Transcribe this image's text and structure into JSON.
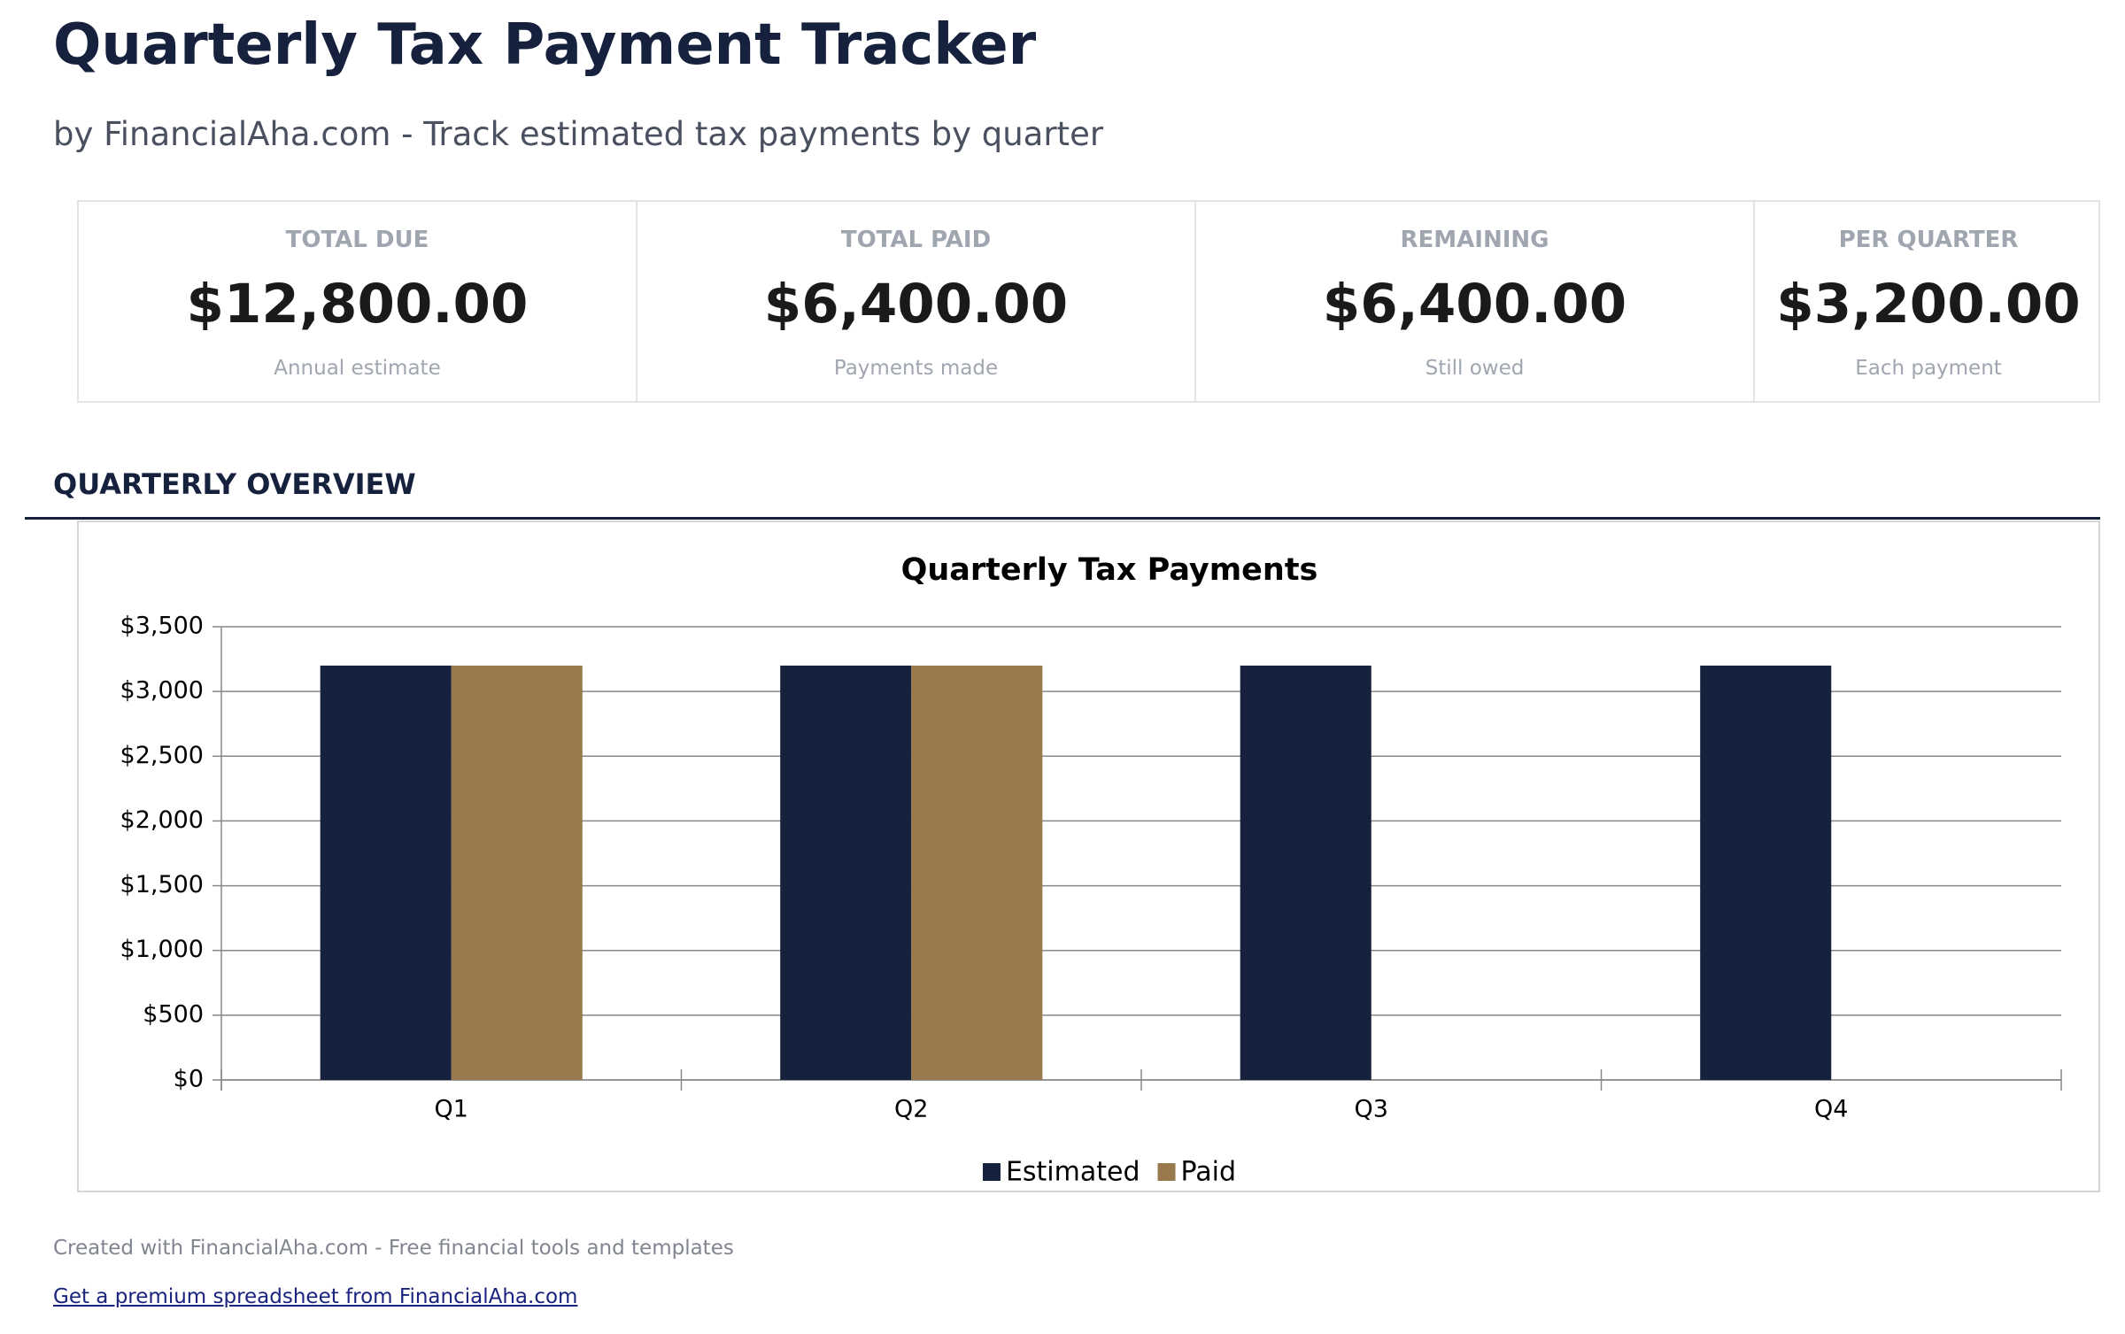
{
  "header": {
    "title": "Quarterly Tax Payment Tracker",
    "subtitle": "by FinancialAha.com - Track estimated tax payments by quarter"
  },
  "cards": [
    {
      "label": "TOTAL DUE",
      "value": "$12,800.00",
      "note": "Annual estimate"
    },
    {
      "label": "TOTAL PAID",
      "value": "$6,400.00",
      "note": "Payments made"
    },
    {
      "label": "REMAINING",
      "value": "$6,400.00",
      "note": "Still owed"
    },
    {
      "label": "PER QUARTER",
      "value": "$3,200.00",
      "note": "Each payment"
    }
  ],
  "section_title": "QUARTERLY OVERVIEW",
  "chart_data": {
    "type": "bar",
    "title": "Quarterly Tax Payments",
    "categories": [
      "Q1",
      "Q2",
      "Q3",
      "Q4"
    ],
    "series": [
      {
        "name": "Estimated",
        "color": "#16213e",
        "values": [
          3200,
          3200,
          3200,
          3200
        ]
      },
      {
        "name": "Paid",
        "color": "#997a4e",
        "values": [
          3200,
          3200,
          0,
          0
        ]
      }
    ],
    "ylim": [
      0,
      3500
    ],
    "yticks": [
      {
        "value": 0,
        "label": "$0"
      },
      {
        "value": 500,
        "label": "$500"
      },
      {
        "value": 1000,
        "label": "$1,000"
      },
      {
        "value": 1500,
        "label": "$1,500"
      },
      {
        "value": 2000,
        "label": "$2,000"
      },
      {
        "value": 2500,
        "label": "$2,500"
      },
      {
        "value": 3000,
        "label": "$3,000"
      },
      {
        "value": 3500,
        "label": "$3,500"
      }
    ],
    "grid": true,
    "legend": "bottom"
  },
  "footer": {
    "text": "Created with FinancialAha.com - Free financial tools and templates",
    "link": "Get a premium spreadsheet from FinancialAha.com"
  }
}
